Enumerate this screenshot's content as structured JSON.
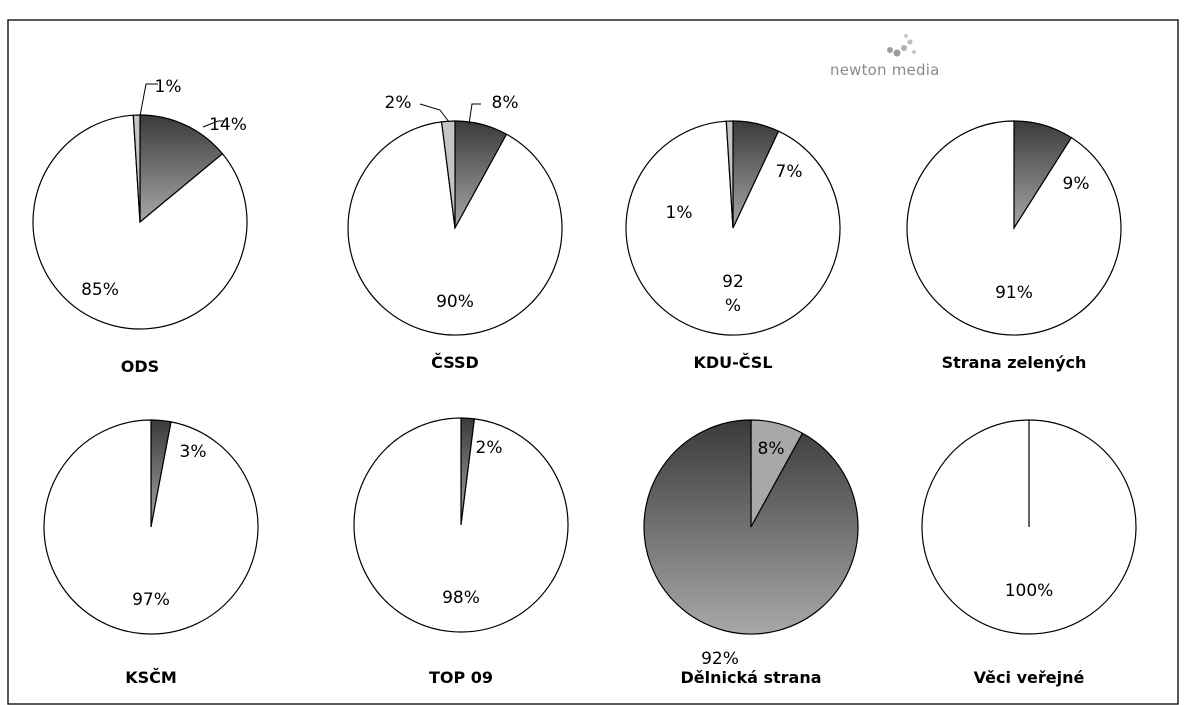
{
  "logo": {
    "text": "newton media"
  },
  "chart_data": [
    {
      "type": "pie",
      "title": "ODS",
      "values": [
        1,
        14,
        85
      ],
      "labels": [
        "1%",
        "14%",
        "85%"
      ]
    },
    {
      "type": "pie",
      "title": "ČSSD",
      "values": [
        2,
        8,
        90
      ],
      "labels": [
        "2%",
        "8%",
        "90%"
      ]
    },
    {
      "type": "pie",
      "title": "KDU-ČSL",
      "values": [
        1,
        7,
        92
      ],
      "labels": [
        "1%",
        "7%",
        "92\n%"
      ]
    },
    {
      "type": "pie",
      "title": "Strana zelených",
      "values": [
        0,
        9,
        91
      ],
      "labels": [
        "",
        "9%",
        "91%"
      ]
    },
    {
      "type": "pie",
      "title": "KSČM",
      "values": [
        0,
        3,
        97
      ],
      "labels": [
        "",
        "3%",
        "97%"
      ]
    },
    {
      "type": "pie",
      "title": "TOP 09",
      "values": [
        0,
        2,
        98
      ],
      "labels": [
        "",
        "2%",
        "98%"
      ]
    },
    {
      "type": "pie",
      "title": "Dělnická strana",
      "values": [
        0,
        8,
        92
      ],
      "labels": [
        "",
        "8%",
        "92%"
      ]
    },
    {
      "type": "pie",
      "title": "Věci veřejné",
      "values": [
        0,
        0,
        100
      ],
      "labels": [
        "",
        "",
        "100%"
      ]
    }
  ],
  "colors": {
    "light_gray": "#c0c0c0",
    "dark_top": "#3c3c3c",
    "dark_bottom": "#9e9e9e",
    "white": "#ffffff",
    "outline": "#000000"
  }
}
